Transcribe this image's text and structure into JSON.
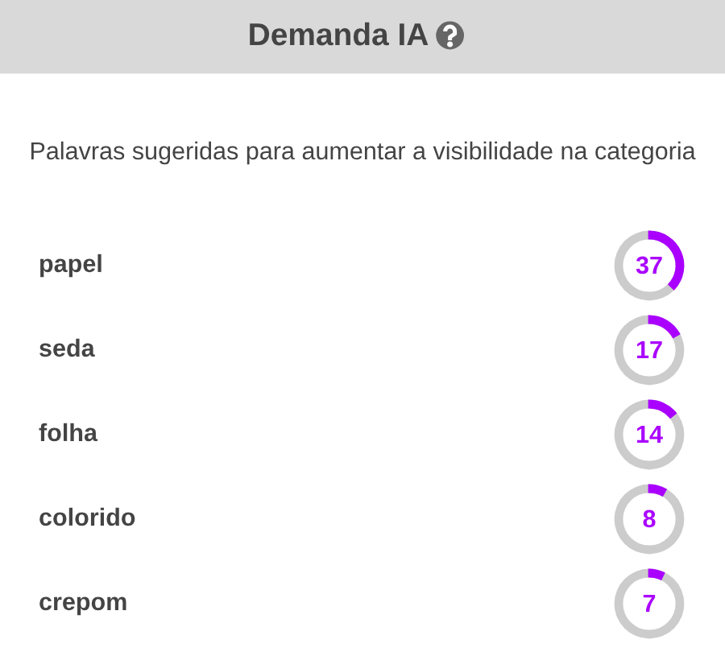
{
  "chart_data": {
    "type": "other",
    "title": "Demanda IA",
    "subtitle": "Palavras sugeridas para aumentar a visibilidade na categoria",
    "categories": [
      "papel",
      "seda",
      "folha",
      "colorido",
      "crepom"
    ],
    "values": [
      37,
      17,
      14,
      8,
      7
    ],
    "data_labels": true,
    "colors": [
      "#aa00ff",
      "#aa00ff",
      "#aa00ff",
      "#aa00ff",
      "#aa00ff"
    ]
  }
}
